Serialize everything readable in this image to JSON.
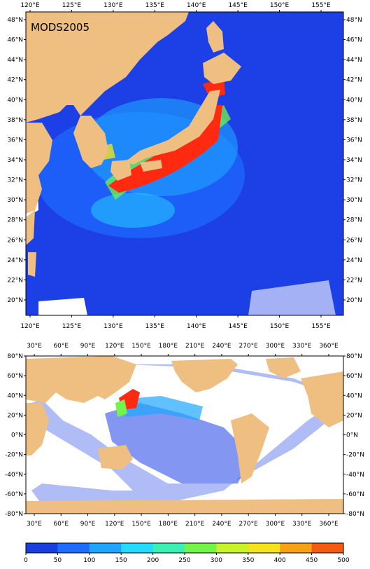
{
  "top_map": {
    "title": "MODS2005",
    "lon_labels": [
      "120°E",
      "125°E",
      "130°E",
      "135°E",
      "140°E",
      "145°E",
      "150°E",
      "155°E"
    ],
    "lat_labels": [
      "20°N",
      "22°N",
      "24°N",
      "26°N",
      "28°N",
      "30°N",
      "32°N",
      "34°N",
      "36°N",
      "38°N",
      "40°N",
      "42°N",
      "44°N",
      "46°N",
      "48°N"
    ]
  },
  "bottom_map": {
    "lon_labels": [
      "30°E",
      "60°E",
      "90°E",
      "120°E",
      "150°E",
      "180°E",
      "210°E",
      "240°E",
      "270°E",
      "300°E",
      "330°E",
      "360°E"
    ],
    "lat_labels": [
      "-80°N",
      "-60°N",
      "-40°N",
      "-20°N",
      "0°N",
      "20°N",
      "40°N",
      "60°N",
      "80°N"
    ]
  },
  "colorbar": {
    "ticks": [
      "0",
      "50",
      "100",
      "150",
      "200",
      "250",
      "300",
      "350",
      "400",
      "450",
      "500"
    ],
    "colors": [
      "#1a3fe0",
      "#1e6cff",
      "#1ea6ff",
      "#25d9ff",
      "#3cf0b4",
      "#74f34a",
      "#c8f22a",
      "#f5e31c",
      "#f7a215",
      "#f45a12"
    ]
  },
  "colors": {
    "land": "#eebf80",
    "ocean_fill": "#1d3fe6",
    "nodata": "#ffffff",
    "high": "#ff2a10"
  }
}
